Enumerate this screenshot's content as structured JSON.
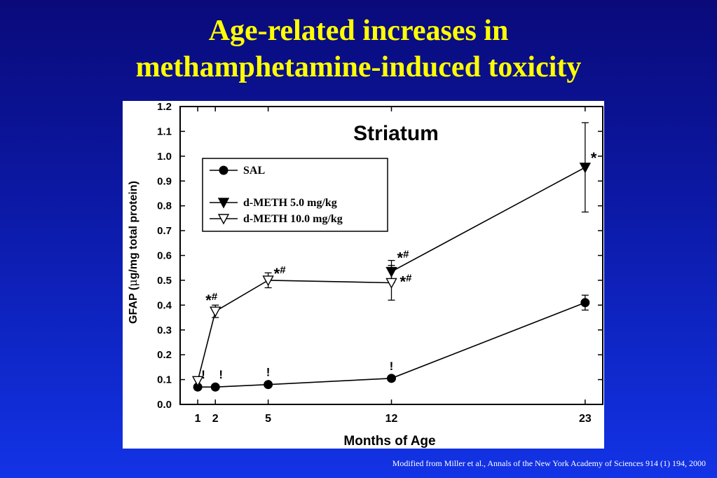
{
  "slide": {
    "title_line1": "Age-related increases in",
    "title_line2": "methamphetamine-induced toxicity",
    "citation": "Modified from Miller et al., Annals of the New York Academy of Sciences 914 (1) 194, 2000"
  },
  "chart_data": {
    "type": "line",
    "title": "Striatum",
    "xlabel": "Months of Age",
    "ylabel_pre": "GFAP (",
    "ylabel_mu": "μ",
    "ylabel_post": "g/mg total protein)",
    "xlim": [
      0,
      24
    ],
    "ylim": [
      0,
      1.2
    ],
    "xticks": [
      1,
      2,
      5,
      12,
      23
    ],
    "yticks": [
      "0.0",
      "0.1",
      "0.2",
      "0.3",
      "0.4",
      "0.5",
      "0.6",
      "0.7",
      "0.8",
      "0.9",
      "1.0",
      "1.1",
      "1.2"
    ],
    "legend_position": "top-left",
    "series": [
      {
        "name": "SAL",
        "marker": "circle",
        "x": [
          1,
          2,
          5,
          12,
          23
        ],
        "y": [
          0.07,
          0.07,
          0.08,
          0.105,
          0.41
        ],
        "err": [
          0,
          0,
          0,
          0,
          0.03
        ]
      },
      {
        "name": "d-METH 5.0 mg/kg",
        "marker": "triangle-down-filled",
        "x": [
          12,
          23
        ],
        "y": [
          0.535,
          0.955
        ],
        "err": [
          0.045,
          0.18
        ]
      },
      {
        "name": "d-METH 10.0 mg/kg",
        "marker": "triangle-down-open",
        "x": [
          1,
          2,
          5,
          12
        ],
        "y": [
          0.095,
          0.375,
          0.5,
          0.49
        ],
        "err": [
          0,
          0.025,
          0.03,
          0.07
        ]
      }
    ],
    "annotations": [
      {
        "x": 1,
        "y": 0.07,
        "main": "!",
        "sup": ""
      },
      {
        "x": 2,
        "y": 0.07,
        "main": "!",
        "sup": ""
      },
      {
        "x": 5,
        "y": 0.08,
        "main": "!",
        "sup": ""
      },
      {
        "x": 12,
        "y": 0.105,
        "main": "!",
        "sup": ""
      },
      {
        "x": 2,
        "y": 0.375,
        "main": "*",
        "sup": "#"
      },
      {
        "x": 5,
        "y": 0.5,
        "main": "*",
        "sup": "#"
      },
      {
        "x": 12,
        "y": 0.535,
        "main": "*",
        "sup": "#"
      },
      {
        "x": 12,
        "y": 0.49,
        "main": "*",
        "sup": "#"
      },
      {
        "x": 23,
        "y": 0.955,
        "main": "*",
        "sup": ""
      }
    ]
  }
}
